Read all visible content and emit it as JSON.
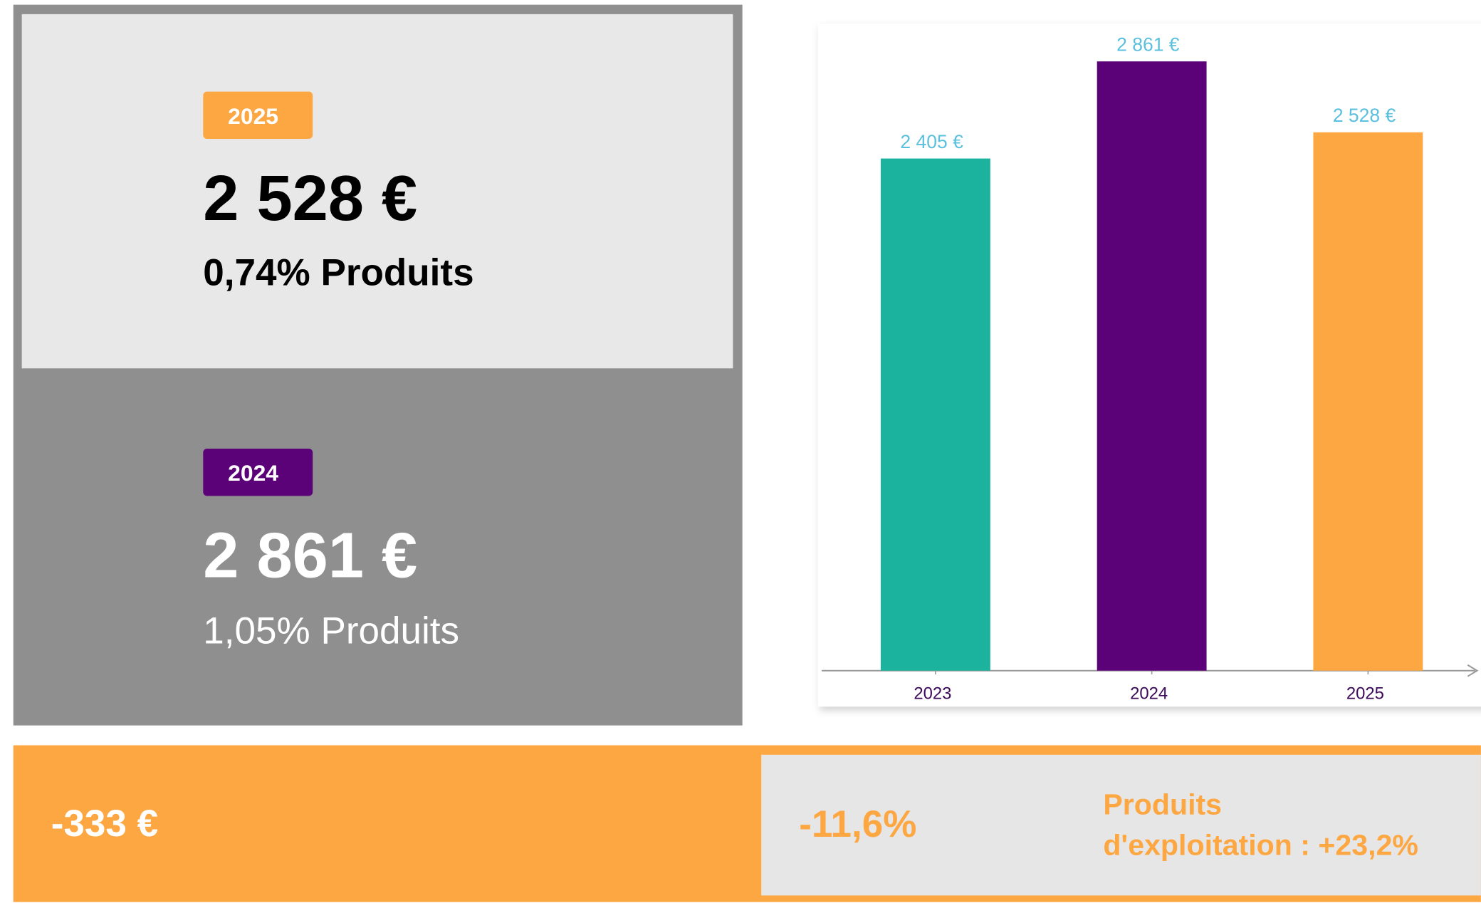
{
  "cards": [
    {
      "badge": "2025",
      "value": "2 528 €",
      "note": "0,74% Produits"
    },
    {
      "badge": "2024",
      "value": "2 861 €",
      "note": "1,05% Produits"
    }
  ],
  "summary": {
    "difference": "-333 €",
    "percent": "-11,6%",
    "note": [
      "Produits",
      "d'exploitation : +23,2%"
    ]
  },
  "chart_data": {
    "type": "bar",
    "categories": [
      "2023",
      "2024",
      "2025"
    ],
    "values": [
      2405,
      2861,
      2528
    ],
    "value_labels": [
      "2 405 €",
      "2 861 €",
      "2 528 €"
    ],
    "colors": [
      "#1bb39e",
      "#5c0278",
      "#fda743"
    ]
  }
}
